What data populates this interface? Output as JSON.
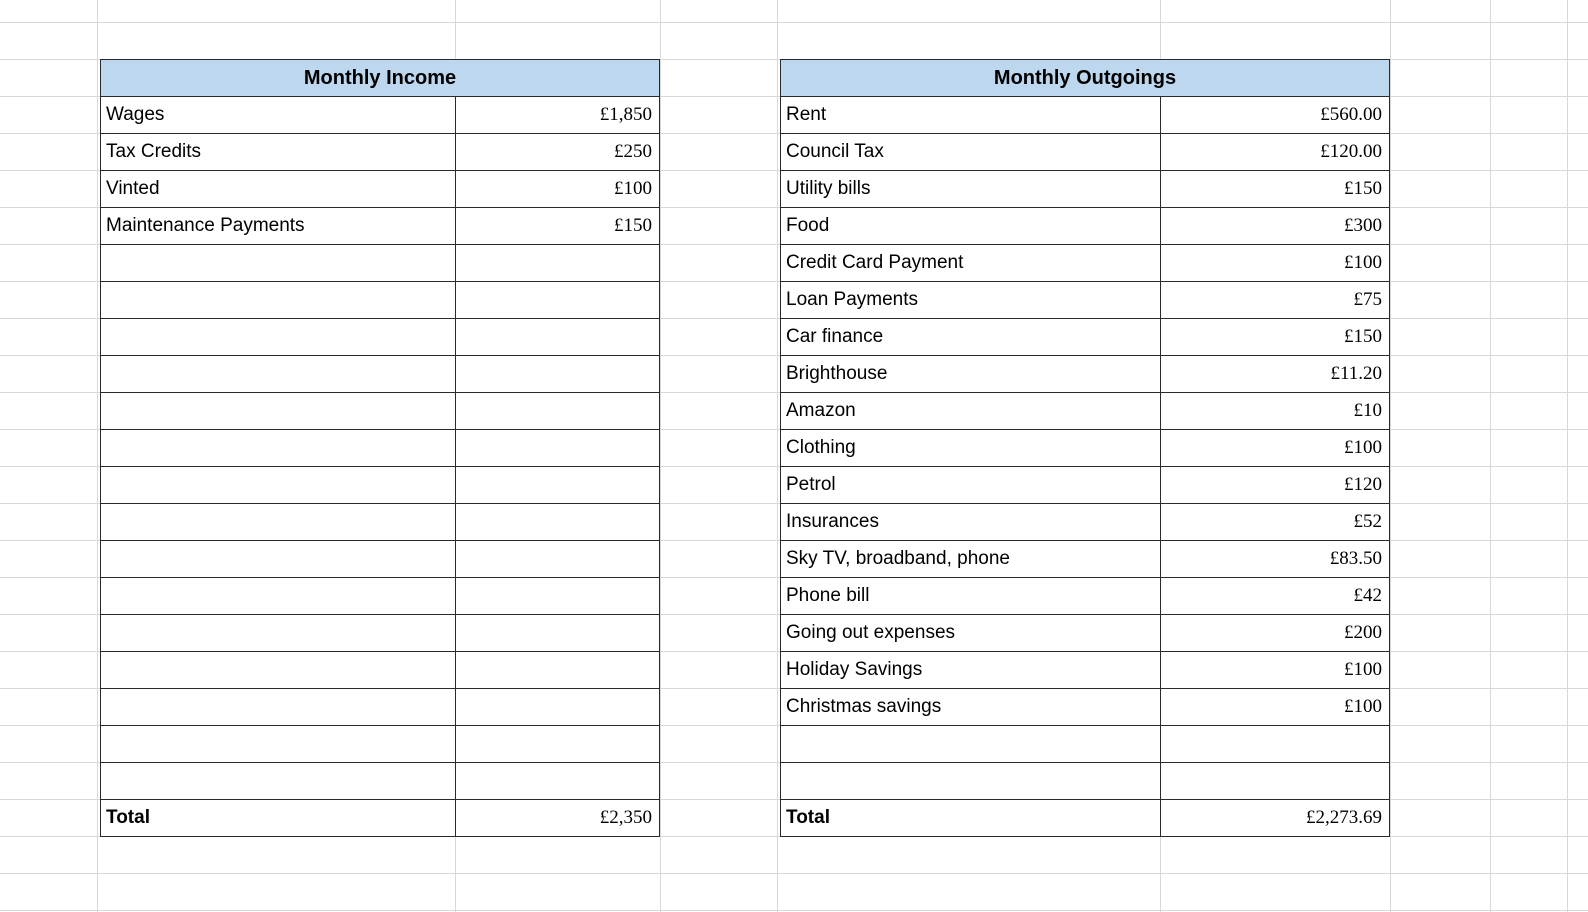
{
  "income_table": {
    "title": "Monthly Income",
    "rows": [
      {
        "label": "Wages",
        "value": "£1,850"
      },
      {
        "label": "Tax Credits",
        "value": "£250"
      },
      {
        "label": "Vinted",
        "value": "£100"
      },
      {
        "label": "Maintenance Payments",
        "value": "£150"
      },
      {
        "label": "",
        "value": ""
      },
      {
        "label": "",
        "value": ""
      },
      {
        "label": "",
        "value": ""
      },
      {
        "label": "",
        "value": ""
      },
      {
        "label": "",
        "value": ""
      },
      {
        "label": "",
        "value": ""
      },
      {
        "label": "",
        "value": ""
      },
      {
        "label": "",
        "value": ""
      },
      {
        "label": "",
        "value": ""
      },
      {
        "label": "",
        "value": ""
      },
      {
        "label": "",
        "value": ""
      },
      {
        "label": "",
        "value": ""
      },
      {
        "label": "",
        "value": ""
      },
      {
        "label": "",
        "value": ""
      },
      {
        "label": "",
        "value": ""
      }
    ],
    "total": {
      "label": "Total",
      "value": "£2,350"
    }
  },
  "outgoings_table": {
    "title": "Monthly Outgoings",
    "rows": [
      {
        "label": "Rent",
        "value": "£560.00"
      },
      {
        "label": "Council Tax",
        "value": "£120.00"
      },
      {
        "label": "Utility bills",
        "value": "£150"
      },
      {
        "label": "Food",
        "value": "£300"
      },
      {
        "label": "Credit Card Payment",
        "value": "£100"
      },
      {
        "label": "Loan Payments",
        "value": "£75"
      },
      {
        "label": "Car finance",
        "value": "£150"
      },
      {
        "label": "Brighthouse",
        "value": "£11.20"
      },
      {
        "label": "Amazon",
        "value": "£10"
      },
      {
        "label": "Clothing",
        "value": "£100"
      },
      {
        "label": "Petrol",
        "value": "£120"
      },
      {
        "label": "Insurances",
        "value": "£52"
      },
      {
        "label": "Sky TV, broadband, phone",
        "value": "£83.50"
      },
      {
        "label": "Phone bill",
        "value": "£42"
      },
      {
        "label": "Going out expenses",
        "value": "£200"
      },
      {
        "label": "Holiday Savings",
        "value": "£100"
      },
      {
        "label": "Christmas savings",
        "value": "£100"
      },
      {
        "label": "",
        "value": ""
      },
      {
        "label": "",
        "value": ""
      }
    ],
    "total": {
      "label": "Total",
      "value": "£2,273.69"
    }
  },
  "colors": {
    "header_fill": "#BDD7EE",
    "table_border": "#2A2A2A",
    "gridline": "#D8D8D8",
    "text": "#000000"
  }
}
